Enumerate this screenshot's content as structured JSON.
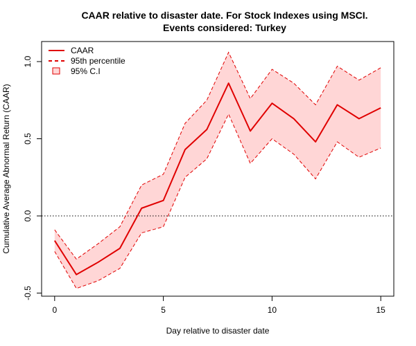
{
  "chart_data": {
    "type": "line",
    "title_line1": "CAAR relative to disaster date. For Stock Indexes using MSCI.",
    "title_line2": "Events considered: Turkey",
    "xlabel": "Day relative to disaster date",
    "ylabel": "Cumulative Average Abnormal Return (CAAR)",
    "xlim": [
      -0.6,
      15.6
    ],
    "ylim": [
      -0.52,
      1.13
    ],
    "x_ticks": [
      0,
      5,
      10,
      15
    ],
    "x_tick_labels": [
      "0",
      "5",
      "10",
      "15"
    ],
    "y_ticks": [
      -0.5,
      0.0,
      0.5,
      1.0
    ],
    "y_tick_labels": [
      "-0.5",
      "0.0",
      "0.5",
      "1.0"
    ],
    "reference_line_y": 0,
    "x": [
      0,
      1,
      2,
      3,
      4,
      5,
      6,
      7,
      8,
      9,
      10,
      11,
      12,
      13,
      14,
      15
    ],
    "series": [
      {
        "name": "CAAR",
        "values": [
          -0.16,
          -0.38,
          -0.3,
          -0.21,
          0.05,
          0.1,
          0.43,
          0.56,
          0.86,
          0.55,
          0.73,
          0.63,
          0.48,
          0.72,
          0.63,
          0.7
        ]
      },
      {
        "name": "95th percentile",
        "upper": [
          -0.09,
          -0.28,
          -0.18,
          -0.07,
          0.2,
          0.27,
          0.6,
          0.75,
          1.06,
          0.76,
          0.95,
          0.86,
          0.72,
          0.97,
          0.88,
          0.96
        ],
        "lower": [
          -0.23,
          -0.47,
          -0.42,
          -0.34,
          -0.11,
          -0.07,
          0.25,
          0.37,
          0.66,
          0.34,
          0.5,
          0.4,
          0.24,
          0.48,
          0.38,
          0.44
        ]
      }
    ],
    "legend": {
      "placement": "top-left",
      "entries": [
        "CAAR",
        "95th percentile",
        "95% C.I"
      ]
    },
    "colors": {
      "line": "#e00000",
      "band": "#ffd6d6",
      "reference": "#000000"
    },
    "grid": false
  }
}
